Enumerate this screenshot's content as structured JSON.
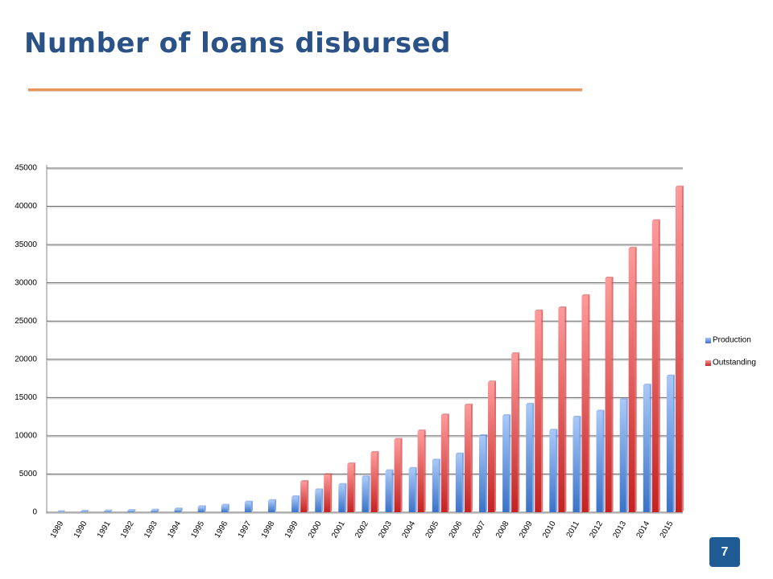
{
  "title": "Number of loans disbursed",
  "page_number": "7",
  "chart_data": {
    "type": "bar",
    "categories": [
      "1989",
      "1990",
      "1991",
      "1992",
      "1993",
      "1994",
      "1995",
      "1996",
      "1997",
      "1998",
      "1999",
      "2000",
      "2001",
      "2002",
      "2003",
      "2004",
      "2005",
      "2006",
      "2007",
      "2008",
      "2009",
      "2010",
      "2011",
      "2012",
      "2013",
      "2014",
      "2015"
    ],
    "series": [
      {
        "name": "Production",
        "color": "#5b8fdc",
        "values": [
          50,
          100,
          150,
          200,
          250,
          400,
          700,
          900,
          1300,
          1500,
          2000,
          2900,
          3600,
          4600,
          5400,
          5700,
          6800,
          7600,
          10000,
          12600,
          14100,
          10700,
          12400,
          13200,
          14700,
          16600,
          17800
        ]
      },
      {
        "name": "Outstanding",
        "color": "#d94a4a",
        "values": [
          null,
          null,
          null,
          null,
          null,
          null,
          null,
          null,
          null,
          null,
          4000,
          4900,
          6300,
          7800,
          9500,
          10600,
          12700,
          14000,
          17000,
          20700,
          26300,
          26700,
          28300,
          30600,
          34500,
          38100,
          42500
        ]
      }
    ],
    "ylim": [
      0,
      45000
    ],
    "yticks": [
      0,
      5000,
      10000,
      15000,
      20000,
      25000,
      30000,
      35000,
      40000,
      45000
    ],
    "grid": true,
    "legend": "right"
  }
}
